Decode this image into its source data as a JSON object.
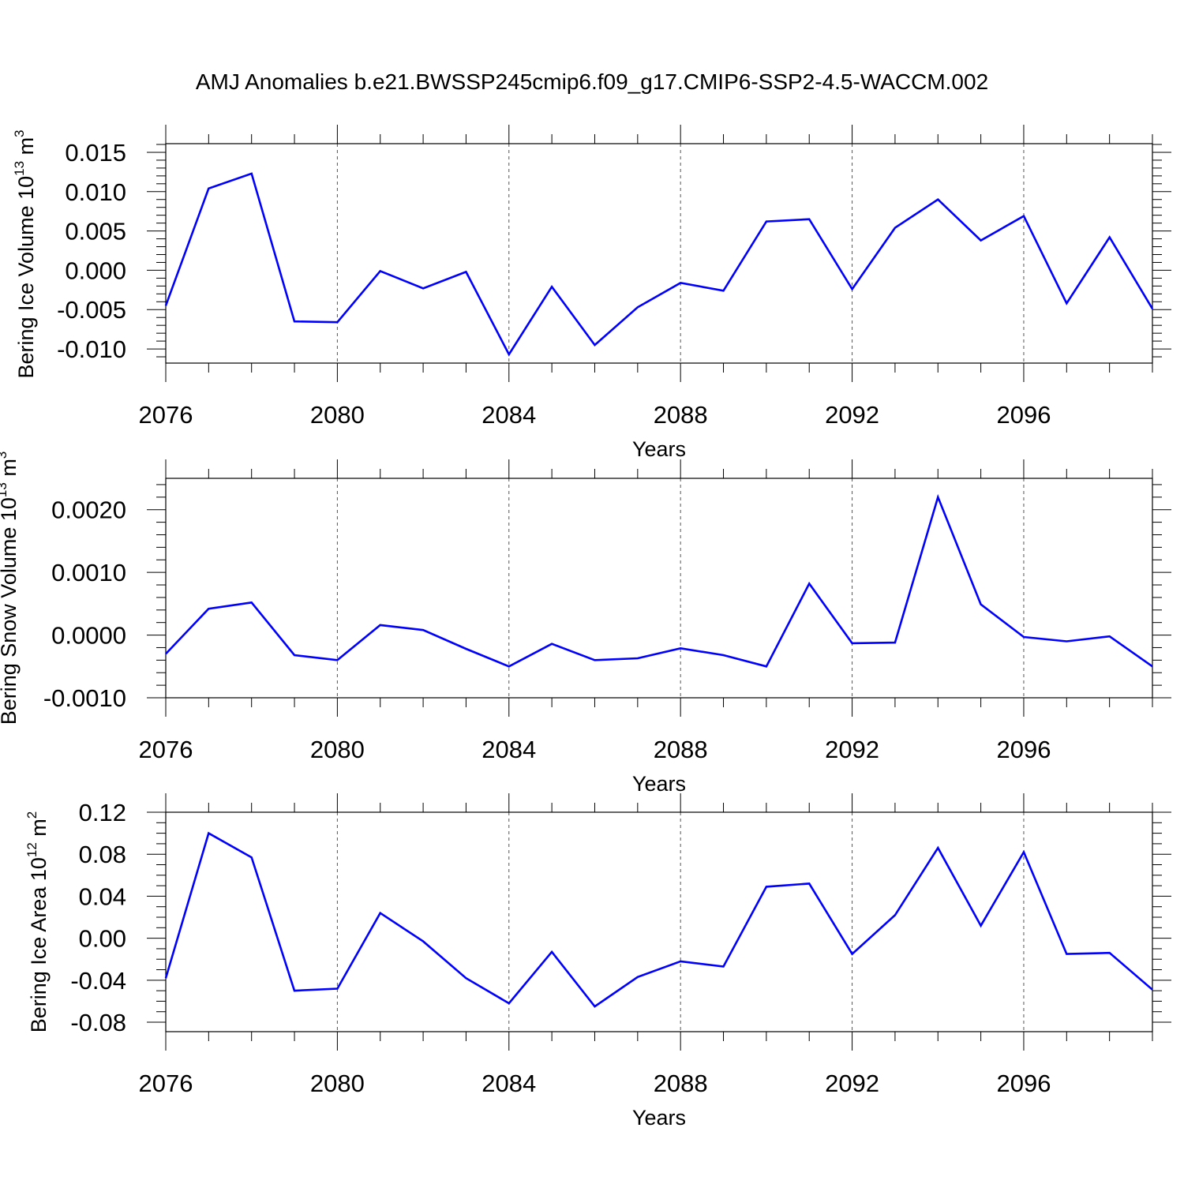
{
  "title": "AMJ Anomalies b.e21.BWSSP245cmip6.f09_g17.CMIP6-SSP2-4.5-WACCM.002",
  "colors": {
    "line": "#0000ff",
    "axis": "#000000",
    "grid": "#555555"
  },
  "chart_data": [
    {
      "type": "line",
      "ylabel_main": "Bering Ice Volume 10",
      "ylabel_sup1": "13",
      "ylabel_unit": " m",
      "ylabel_sup2": "3",
      "xlabel": "Years",
      "xlim": [
        2076,
        2099
      ],
      "ylim": [
        -0.0118,
        0.0161
      ],
      "yticks": [
        -0.01,
        -0.005,
        0.0,
        0.005,
        0.01,
        0.015
      ],
      "yticklabels": [
        "-0.010",
        "-0.005",
        "0.000",
        "0.005",
        "0.010",
        "0.015"
      ],
      "yminor": 0.001,
      "xticks": [
        2076,
        2080,
        2084,
        2088,
        2092,
        2096
      ],
      "xticklabels": [
        "2076",
        "2080",
        "2084",
        "2088",
        "2092",
        "2096"
      ],
      "x": [
        2076,
        2077,
        2078,
        2079,
        2080,
        2081,
        2082,
        2083,
        2084,
        2085,
        2086,
        2087,
        2088,
        2089,
        2090,
        2091,
        2092,
        2093,
        2094,
        2095,
        2096,
        2097,
        2098,
        2099
      ],
      "values": [
        -0.0045,
        0.0104,
        0.0123,
        -0.0065,
        -0.0066,
        -0.0001,
        -0.0023,
        -0.0002,
        -0.0107,
        -0.0021,
        -0.0095,
        -0.0047,
        -0.0016,
        -0.0026,
        0.0062,
        0.0065,
        -0.0024,
        0.0054,
        0.009,
        0.0038,
        0.0069,
        -0.0042,
        0.0042,
        -0.0049
      ]
    },
    {
      "type": "line",
      "ylabel_main": "Bering Snow Volume 10",
      "ylabel_sup1": "13",
      "ylabel_unit": " m",
      "ylabel_sup2": "3",
      "xlabel": "Years",
      "xlim": [
        2076,
        2099
      ],
      "ylim": [
        -0.001,
        0.0025
      ],
      "yticks": [
        -0.001,
        0.0,
        0.001,
        0.002
      ],
      "yticklabels": [
        "-0.0010",
        "0.0000",
        "0.0010",
        "0.0020"
      ],
      "yminor": 0.0002,
      "xticks": [
        2076,
        2080,
        2084,
        2088,
        2092,
        2096
      ],
      "xticklabels": [
        "2076",
        "2080",
        "2084",
        "2088",
        "2092",
        "2096"
      ],
      "x": [
        2076,
        2077,
        2078,
        2079,
        2080,
        2081,
        2082,
        2083,
        2084,
        2085,
        2086,
        2087,
        2088,
        2089,
        2090,
        2091,
        2092,
        2093,
        2094,
        2095,
        2096,
        2097,
        2098,
        2099
      ],
      "values": [
        -0.0003,
        0.00042,
        0.00052,
        -0.00032,
        -0.0004,
        0.00016,
        8e-05,
        -0.00022,
        -0.0005,
        -0.00014,
        -0.0004,
        -0.00037,
        -0.00021,
        -0.00032,
        -0.0005,
        0.00082,
        -0.00013,
        -0.00012,
        0.0022,
        0.00049,
        -3e-05,
        -0.0001,
        -2e-05,
        -0.0005
      ]
    },
    {
      "type": "line",
      "ylabel_main": "Bering Ice Area 10",
      "ylabel_sup1": "12",
      "ylabel_unit": " m",
      "ylabel_sup2": "2",
      "xlabel": "Years",
      "xlim": [
        2076,
        2099
      ],
      "ylim": [
        -0.089,
        0.12
      ],
      "yticks": [
        -0.08,
        -0.04,
        0.0,
        0.04,
        0.08,
        0.12
      ],
      "yticklabels": [
        "-0.08",
        "-0.04",
        "0.00",
        "0.04",
        "0.08",
        "0.12"
      ],
      "yminor": 0.01,
      "xticks": [
        2076,
        2080,
        2084,
        2088,
        2092,
        2096
      ],
      "xticklabels": [
        "2076",
        "2080",
        "2084",
        "2088",
        "2092",
        "2096"
      ],
      "x": [
        2076,
        2077,
        2078,
        2079,
        2080,
        2081,
        2082,
        2083,
        2084,
        2085,
        2086,
        2087,
        2088,
        2089,
        2090,
        2091,
        2092,
        2093,
        2094,
        2095,
        2096,
        2097,
        2098,
        2099
      ],
      "values": [
        -0.038,
        0.1,
        0.077,
        -0.05,
        -0.048,
        0.024,
        -0.003,
        -0.038,
        -0.062,
        -0.013,
        -0.065,
        -0.037,
        -0.022,
        -0.027,
        0.049,
        0.052,
        -0.015,
        0.022,
        0.086,
        0.012,
        0.082,
        -0.015,
        -0.014,
        -0.049
      ]
    }
  ]
}
